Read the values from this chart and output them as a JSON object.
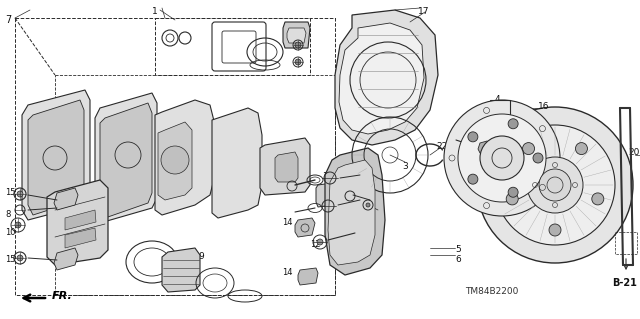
{
  "bg_color": "#ffffff",
  "line_color": "#2a2a2a",
  "diagram_code": "TM84B2200",
  "ref_label": "B-21",
  "fr_label": "FR.",
  "figsize": [
    6.4,
    3.19
  ],
  "dpi": 100
}
